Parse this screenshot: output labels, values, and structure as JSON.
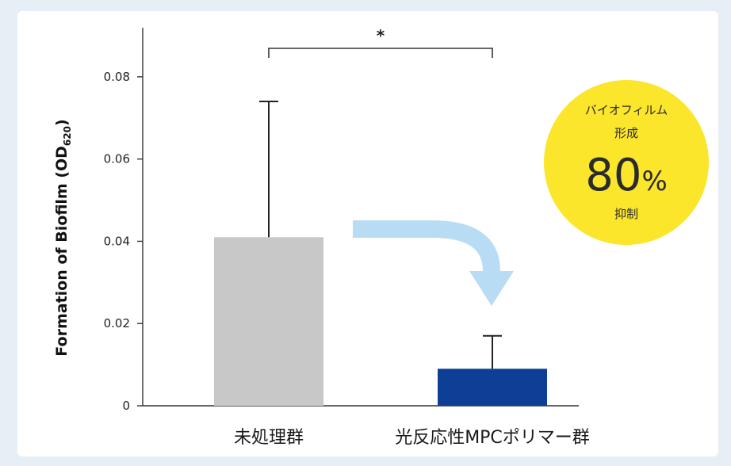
{
  "chart_data": {
    "type": "bar",
    "categories": [
      "未処理群",
      "光反応性MPCポリマー群"
    ],
    "values": [
      0.041,
      0.009
    ],
    "error_upper": [
      0.074,
      0.017
    ],
    "bar_colors": [
      "#c8c8c8",
      "#0d3f97"
    ],
    "ylabel_main": "Formation of Biofilm (OD",
    "ylabel_sub": "620",
    "ylabel_close": ")",
    "ylim": [
      0,
      0.09
    ],
    "yticks": [
      0,
      0.02,
      0.04,
      0.06,
      0.08
    ],
    "ytick_labels": [
      "0",
      "0.02",
      "0.04",
      "0.06",
      "0.08"
    ],
    "significance": "*",
    "grid": false
  },
  "badge": {
    "line1": "バイオフィルム",
    "line2": "形成",
    "value": "80",
    "unit": "%",
    "line4": "抑制",
    "color": "#fbe62c"
  },
  "arrow_color": "#b9dcf5",
  "axis_color": "#333333"
}
